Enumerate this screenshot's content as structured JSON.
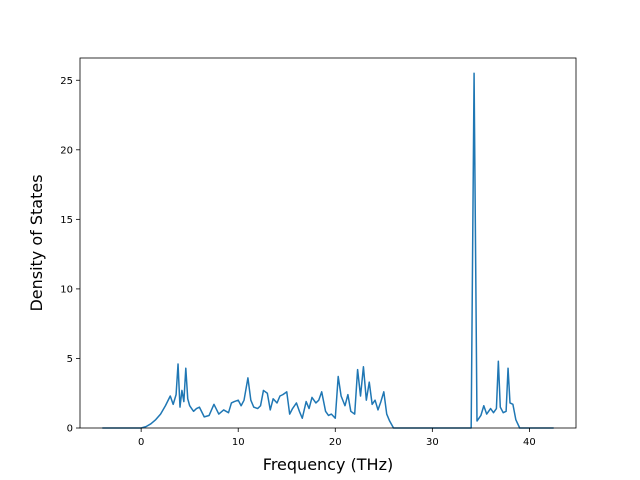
{
  "chart_data": {
    "type": "line",
    "title": "",
    "xlabel": "Frequency (THz)",
    "ylabel": "Density of States",
    "xlim": [
      -6.3,
      44.8
    ],
    "ylim": [
      0,
      26.6
    ],
    "xticks": [
      0,
      10,
      20,
      30,
      40
    ],
    "yticks": [
      0,
      5,
      10,
      15,
      20,
      25
    ],
    "grid": false,
    "line_color": "#1f77b4",
    "series": [
      {
        "x": [
          -4.0,
          -3.0,
          -2.0,
          -1.0,
          0.0,
          0.5,
          1.0,
          1.5,
          2.0,
          2.5,
          3.0,
          3.3,
          3.6,
          3.8,
          4.0,
          4.2,
          4.4,
          4.6,
          4.8,
          5.0,
          5.2,
          5.4,
          5.7,
          6.0,
          6.5,
          7.0,
          7.5,
          8.0,
          8.5,
          9.0,
          9.3,
          9.6,
          10.0,
          10.3,
          10.6,
          11.0,
          11.3,
          11.6,
          12.0,
          12.3,
          12.6,
          13.0,
          13.3,
          13.6,
          14.0,
          14.3,
          14.6,
          15.0,
          15.3,
          15.6,
          16.0,
          16.3,
          16.6,
          17.0,
          17.3,
          17.6,
          18.0,
          18.3,
          18.6,
          19.0,
          19.3,
          19.6,
          20.0,
          20.3,
          20.6,
          21.0,
          21.3,
          21.6,
          22.0,
          22.3,
          22.6,
          22.9,
          23.2,
          23.5,
          23.8,
          24.1,
          24.4,
          24.7,
          25.0,
          25.3,
          25.6,
          26.0,
          30.0,
          34.0,
          34.3,
          34.6,
          35.0,
          35.3,
          35.6,
          36.0,
          36.3,
          36.6,
          36.8,
          37.0,
          37.3,
          37.6,
          37.8,
          38.0,
          38.3,
          38.6,
          39.0,
          40.0,
          42.5
        ],
        "y": [
          0.0,
          0.0,
          0.0,
          0.0,
          0.0,
          0.1,
          0.3,
          0.6,
          1.0,
          1.6,
          2.3,
          1.7,
          2.4,
          4.6,
          1.5,
          2.7,
          1.9,
          4.3,
          2.1,
          1.6,
          1.4,
          1.2,
          1.4,
          1.5,
          0.8,
          0.9,
          1.7,
          1.0,
          1.3,
          1.1,
          1.8,
          1.9,
          2.0,
          1.6,
          2.0,
          3.6,
          2.0,
          1.5,
          1.4,
          1.6,
          2.7,
          2.5,
          1.3,
          2.1,
          1.8,
          2.3,
          2.4,
          2.6,
          1.0,
          1.4,
          1.8,
          1.2,
          0.7,
          1.9,
          1.4,
          2.2,
          1.8,
          2.0,
          2.6,
          1.2,
          0.9,
          1.0,
          0.7,
          3.7,
          2.3,
          1.6,
          2.4,
          1.2,
          1.0,
          4.2,
          2.3,
          4.4,
          2.0,
          3.3,
          1.7,
          2.0,
          1.3,
          1.9,
          2.6,
          1.0,
          0.5,
          0.0,
          0.0,
          0.0,
          25.5,
          0.5,
          0.9,
          1.6,
          1.0,
          1.4,
          1.1,
          1.4,
          4.8,
          1.5,
          1.1,
          1.2,
          4.3,
          1.8,
          1.7,
          0.6,
          0.0,
          0.0,
          0.0
        ]
      }
    ]
  }
}
